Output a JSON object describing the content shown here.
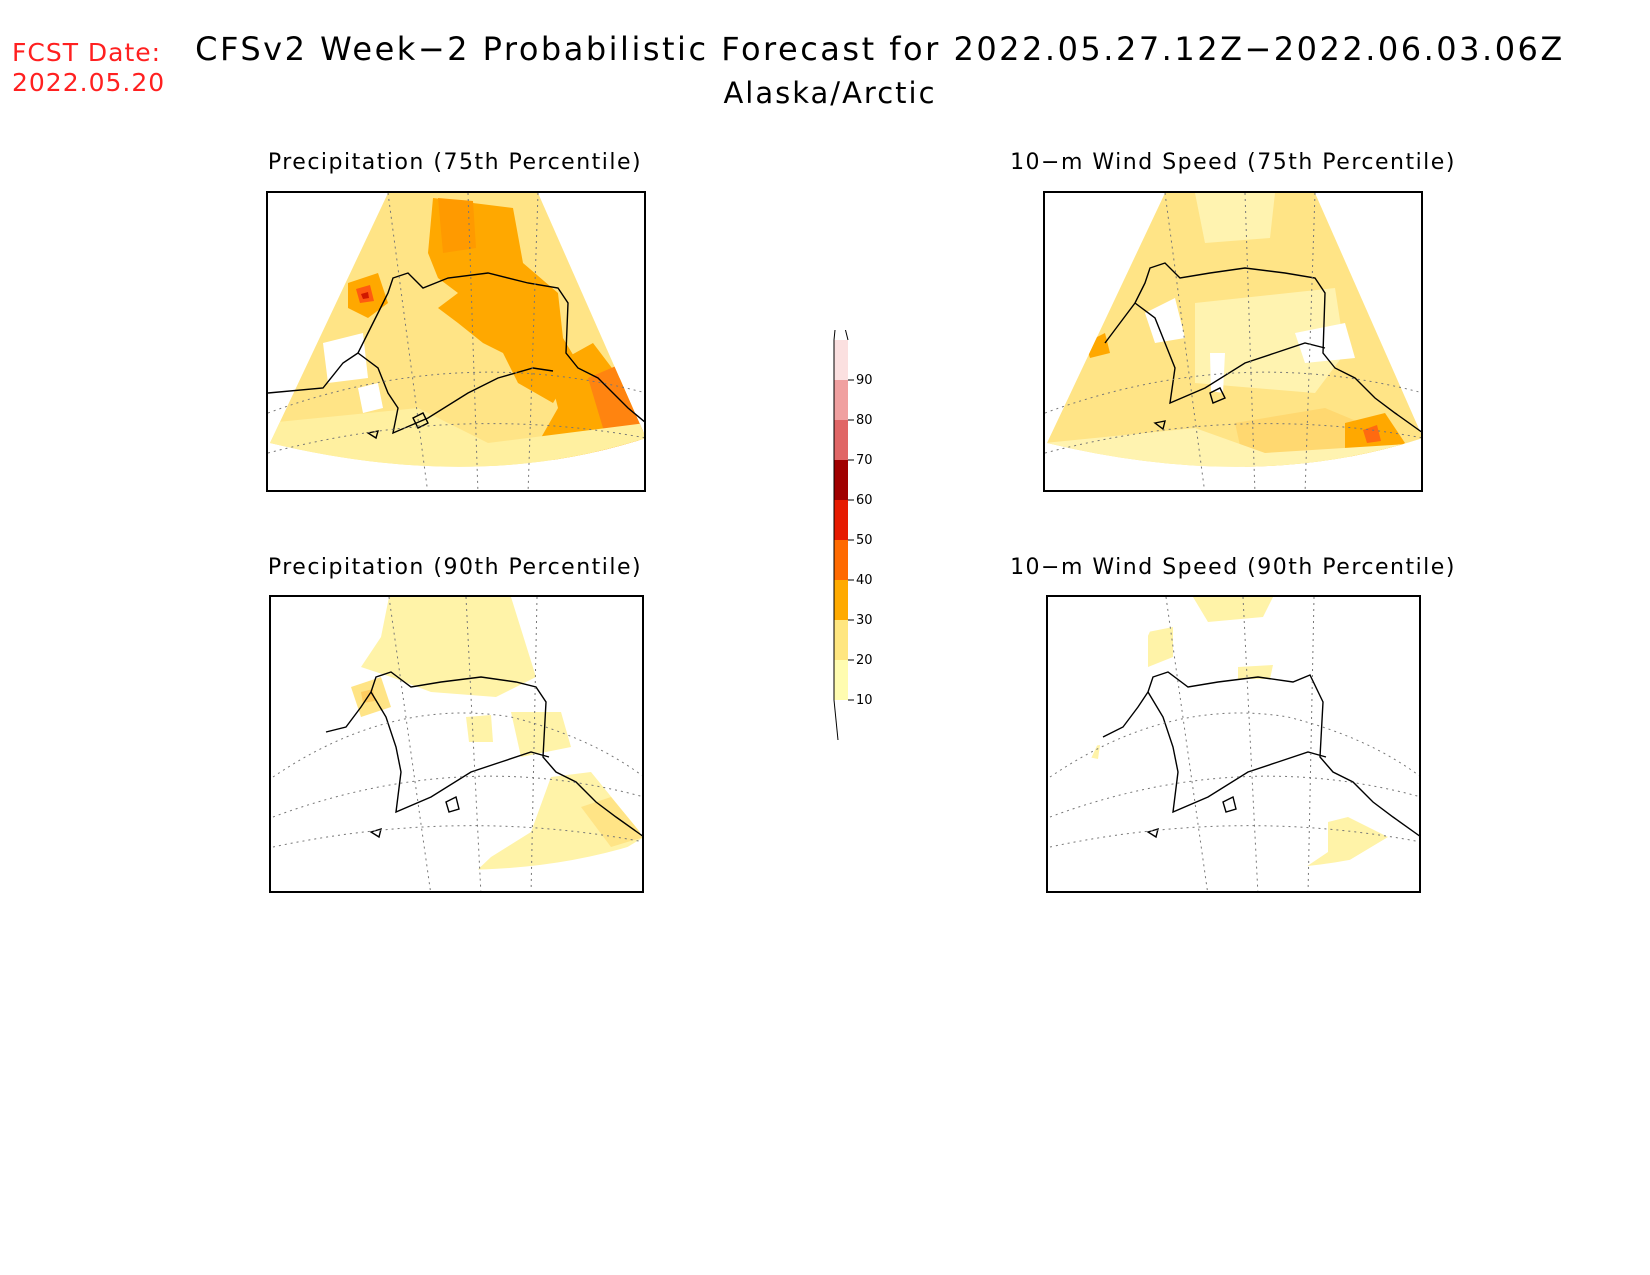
{
  "header": {
    "fcst_label": "FCST Date:",
    "fcst_date": "2022.05.20",
    "title": "CFSv2 Week−2 Probabilistic Forecast for 2022.05.27.12Z−2022.06.03.06Z",
    "subtitle": "Alaska/Arctic"
  },
  "panels": [
    {
      "title": "Precipitation (75th Percentile)"
    },
    {
      "title": "10−m Wind Speed (75th Percentile)"
    },
    {
      "title": "Precipitation (90th Percentile)"
    },
    {
      "title": "10−m Wind Speed (90th Percentile)"
    }
  ],
  "colorbar": {
    "levels": [
      "10",
      "20",
      "30",
      "40",
      "50",
      "60",
      "70",
      "80",
      "90"
    ],
    "colors": [
      "#fffcb0",
      "#ffe680",
      "#ffaa00",
      "#ff6a00",
      "#e61a00",
      "#a00000",
      "#e06666",
      "#f0a0a0",
      "#fbe0e0"
    ]
  },
  "colors": {
    "white": "#ffffff",
    "pale": "#fff8b0",
    "light": "#ffe486",
    "orange": "#ffa800",
    "dark_orange": "#ff6a10",
    "red": "#e01800",
    "fcst_date_text": "#ff2020"
  }
}
